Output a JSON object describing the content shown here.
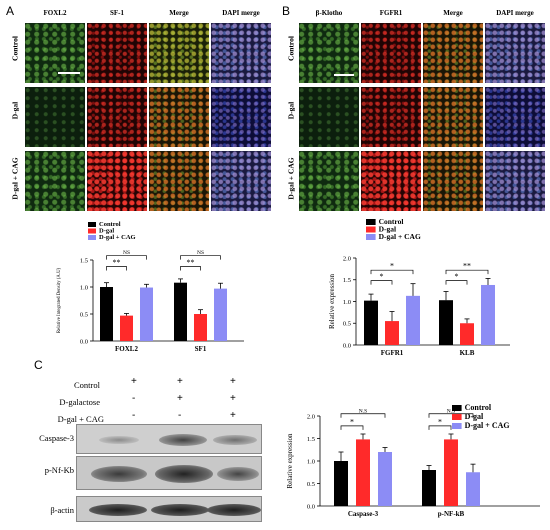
{
  "panels": {
    "A": "A",
    "B": "B",
    "C": "C"
  },
  "panelA": {
    "columns": [
      "FOXL2",
      "SF-1",
      "Merge",
      "DAPI merge"
    ],
    "rows": [
      "Control",
      "D-gal",
      "D-gal + CAG"
    ]
  },
  "panelB": {
    "columns": [
      "β-Klotho",
      "FGFR1",
      "Merge",
      "DAPI merge"
    ],
    "rows": [
      "Control",
      "D-gal",
      "D-gal + CAG"
    ]
  },
  "panelC": {
    "treatments": [
      "Control",
      "D-galactose",
      "D-gal + CAG"
    ],
    "signs": [
      [
        "+",
        "+",
        "+"
      ],
      [
        "-",
        "+",
        "+"
      ],
      [
        "-",
        "-",
        "+"
      ]
    ],
    "blots": [
      "Caspase-3",
      "p-Nf-Kb",
      "β-actin"
    ]
  },
  "colors": {
    "control": "#000000",
    "dgal": "#ff2a2a",
    "cag": "#8c8cf5"
  },
  "chart_data": [
    {
      "type": "bar",
      "panel": "A",
      "categories": [
        "FOXL2",
        "SF1"
      ],
      "series": [
        {
          "name": "Control",
          "values": [
            1.0,
            1.08
          ],
          "errors": [
            0.08,
            0.07
          ]
        },
        {
          "name": "D-gal",
          "values": [
            0.47,
            0.5
          ],
          "errors": [
            0.04,
            0.08
          ]
        },
        {
          "name": "D-gal + CAG",
          "values": [
            0.99,
            0.97
          ],
          "errors": [
            0.06,
            0.1
          ]
        }
      ],
      "ylabel": "Relative Integrated Density (A.U)",
      "ylim": [
        0,
        1.5
      ],
      "yticks": [
        "0.0",
        "0.5",
        "1.0",
        "1.5"
      ],
      "significance": [
        {
          "label": "**",
          "category": 0,
          "pair": [
            0,
            1
          ]
        },
        {
          "label": "NS",
          "category": 0,
          "pair": [
            0,
            2
          ]
        },
        {
          "label": "**",
          "category": 1,
          "pair": [
            0,
            1
          ]
        },
        {
          "label": "NS",
          "category": 1,
          "pair": [
            0,
            2
          ]
        }
      ],
      "legend_position": "top-left"
    },
    {
      "type": "bar",
      "panel": "B",
      "categories": [
        "FGFR1",
        "KLB"
      ],
      "series": [
        {
          "name": "Control",
          "values": [
            1.02,
            1.03
          ],
          "errors": [
            0.15,
            0.2
          ]
        },
        {
          "name": "D-gal",
          "values": [
            0.55,
            0.5
          ],
          "errors": [
            0.22,
            0.1
          ]
        },
        {
          "name": "D-gal + CAG",
          "values": [
            1.13,
            1.38
          ],
          "errors": [
            0.28,
            0.15
          ]
        }
      ],
      "ylabel": "Relative expression",
      "ylim": [
        0,
        2.0
      ],
      "yticks": [
        "0.0",
        "0.5",
        "1.0",
        "1.5",
        "2.0"
      ],
      "significance": [
        {
          "label": "*",
          "category": 0,
          "pair": [
            0,
            1
          ]
        },
        {
          "label": "*",
          "category": 0,
          "pair": [
            0,
            2
          ]
        },
        {
          "label": "*",
          "category": 1,
          "pair": [
            0,
            1
          ]
        },
        {
          "label": "**",
          "category": 1,
          "pair": [
            0,
            2
          ]
        }
      ],
      "legend_position": "top-left"
    },
    {
      "type": "bar",
      "panel": "C",
      "categories": [
        "Caspase-3",
        "p-NF-kB"
      ],
      "series": [
        {
          "name": "Control",
          "values": [
            1.0,
            0.8
          ],
          "errors": [
            0.2,
            0.1
          ]
        },
        {
          "name": "D-gal",
          "values": [
            1.48,
            1.48
          ],
          "errors": [
            0.12,
            0.12
          ]
        },
        {
          "name": "D-gal + CAG",
          "values": [
            1.2,
            0.75
          ],
          "errors": [
            0.1,
            0.18
          ]
        }
      ],
      "ylabel": "Relative expression",
      "ylim": [
        0,
        2.0
      ],
      "yticks": [
        "0.0",
        "0.5",
        "1.0",
        "1.5",
        "2.0"
      ],
      "significance": [
        {
          "label": "*",
          "category": 0,
          "pair": [
            0,
            1
          ]
        },
        {
          "label": "N.S",
          "category": 0,
          "pair": [
            0,
            2
          ]
        },
        {
          "label": "*",
          "category": 1,
          "pair": [
            0,
            1
          ]
        },
        {
          "label": "N.S",
          "category": 1,
          "pair": [
            0,
            2
          ]
        }
      ],
      "legend_position": "top-right"
    }
  ]
}
